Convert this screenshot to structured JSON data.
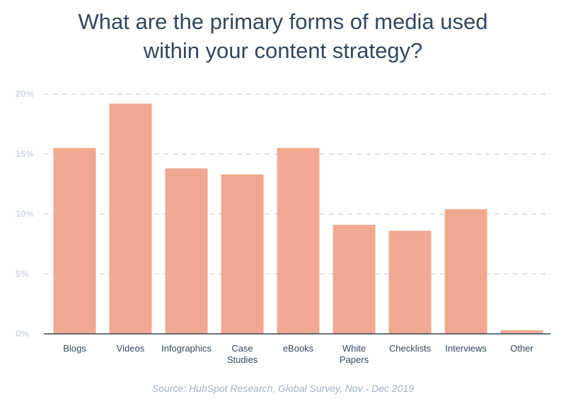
{
  "title_lines": [
    "What are the primary forms of media used",
    "within your content strategy?"
  ],
  "source": "Source: HubSpot Research, Global Survey, Nov - Dec 2019",
  "colors": {
    "bar": "#f0a890",
    "grid": "#d3dae3",
    "axis_tick": "#d0d8e2",
    "baseline": "#33475b",
    "title": "#33475b",
    "category_label": "#33475b",
    "source": "#9fb0c2"
  },
  "chart_data": {
    "type": "bar",
    "title": "What are the primary forms of media used within your content strategy?",
    "xlabel": "",
    "ylabel": "",
    "categories": [
      [
        "Blogs"
      ],
      [
        "Videos"
      ],
      [
        "Infographics"
      ],
      [
        "Case",
        "Studies"
      ],
      [
        "eBooks"
      ],
      [
        "White",
        "Papers"
      ],
      [
        "Checklists"
      ],
      [
        "Interviews"
      ],
      [
        "Other"
      ]
    ],
    "values": [
      15.5,
      19.2,
      13.8,
      13.3,
      15.5,
      9.1,
      8.6,
      10.4,
      0.3
    ],
    "yticks": [
      "0%",
      "5%",
      "10%",
      "15%",
      "20%"
    ],
    "ytick_values": [
      0,
      5,
      10,
      15,
      20
    ],
    "ylim": [
      0,
      20
    ],
    "grid": true,
    "legend": "none"
  }
}
